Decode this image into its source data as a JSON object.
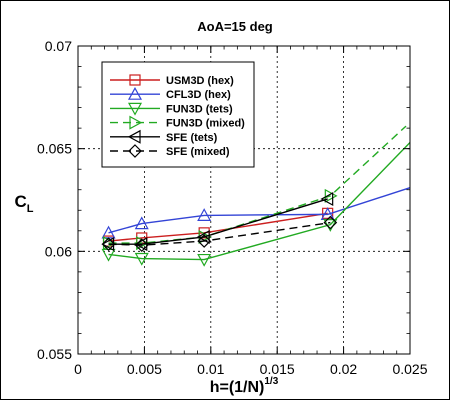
{
  "chart_data": {
    "type": "line",
    "title": "AoA=15 deg",
    "xlabel": {
      "base": "h=(1/N)",
      "sup": "1/3"
    },
    "ylabel": {
      "base": "C",
      "sub": "L"
    },
    "xlim": [
      0,
      0.025
    ],
    "ylim": [
      0.055,
      0.07
    ],
    "xticks": [
      0,
      0.005,
      0.01,
      0.015,
      0.02,
      0.025
    ],
    "xtick_labels": [
      "0",
      "0.005",
      "0.01",
      "0.015",
      "0.02",
      "0.025"
    ],
    "yticks": [
      0.055,
      0.06,
      0.065,
      0.07
    ],
    "ytick_labels": [
      "0.055",
      "0.06",
      "0.065",
      "0.07"
    ],
    "grid": true,
    "legend_position": "upper-left",
    "series": [
      {
        "name": "USM3D (hex)",
        "color": "#cc1f1f",
        "dash": "solid",
        "marker": "square",
        "x": [
          0.0023,
          0.0048,
          0.0095,
          0.0188
        ],
        "y": [
          0.0605,
          0.06065,
          0.0609,
          0.06185
        ]
      },
      {
        "name": "CFL3D (hex)",
        "color": "#3344d6",
        "dash": "solid",
        "marker": "triangle-up",
        "x": [
          0.0023,
          0.0048,
          0.0095,
          0.0188,
          0.025
        ],
        "y": [
          0.0609,
          0.06135,
          0.06175,
          0.0618,
          0.0631
        ]
      },
      {
        "name": "FUN3D (tets)",
        "color": "#22aa22",
        "dash": "solid",
        "marker": "triangle-down",
        "x": [
          0.0023,
          0.0048,
          0.0095,
          0.019,
          0.025
        ],
        "y": [
          0.05985,
          0.05965,
          0.0596,
          0.0613,
          0.0653
        ]
      },
      {
        "name": "FUN3D (mixed)",
        "color": "#22aa22",
        "dash": "dashed",
        "marker": "triangle-right",
        "x": [
          0.0023,
          0.0048,
          0.0095,
          0.019,
          0.0247
        ],
        "y": [
          0.0604,
          0.0604,
          0.0607,
          0.0627,
          0.0661
        ]
      },
      {
        "name": "SFE (tets)",
        "color": "#000000",
        "dash": "solid",
        "marker": "triangle-left",
        "x": [
          0.0023,
          0.0048,
          0.0095,
          0.0188
        ],
        "y": [
          0.06035,
          0.06035,
          0.0607,
          0.06255
        ]
      },
      {
        "name": "SFE (mixed)",
        "color": "#000000",
        "dash": "dashed",
        "marker": "diamond",
        "x": [
          0.0023,
          0.0048,
          0.0095,
          0.019
        ],
        "y": [
          0.06035,
          0.0603,
          0.0605,
          0.0614
        ]
      }
    ]
  }
}
